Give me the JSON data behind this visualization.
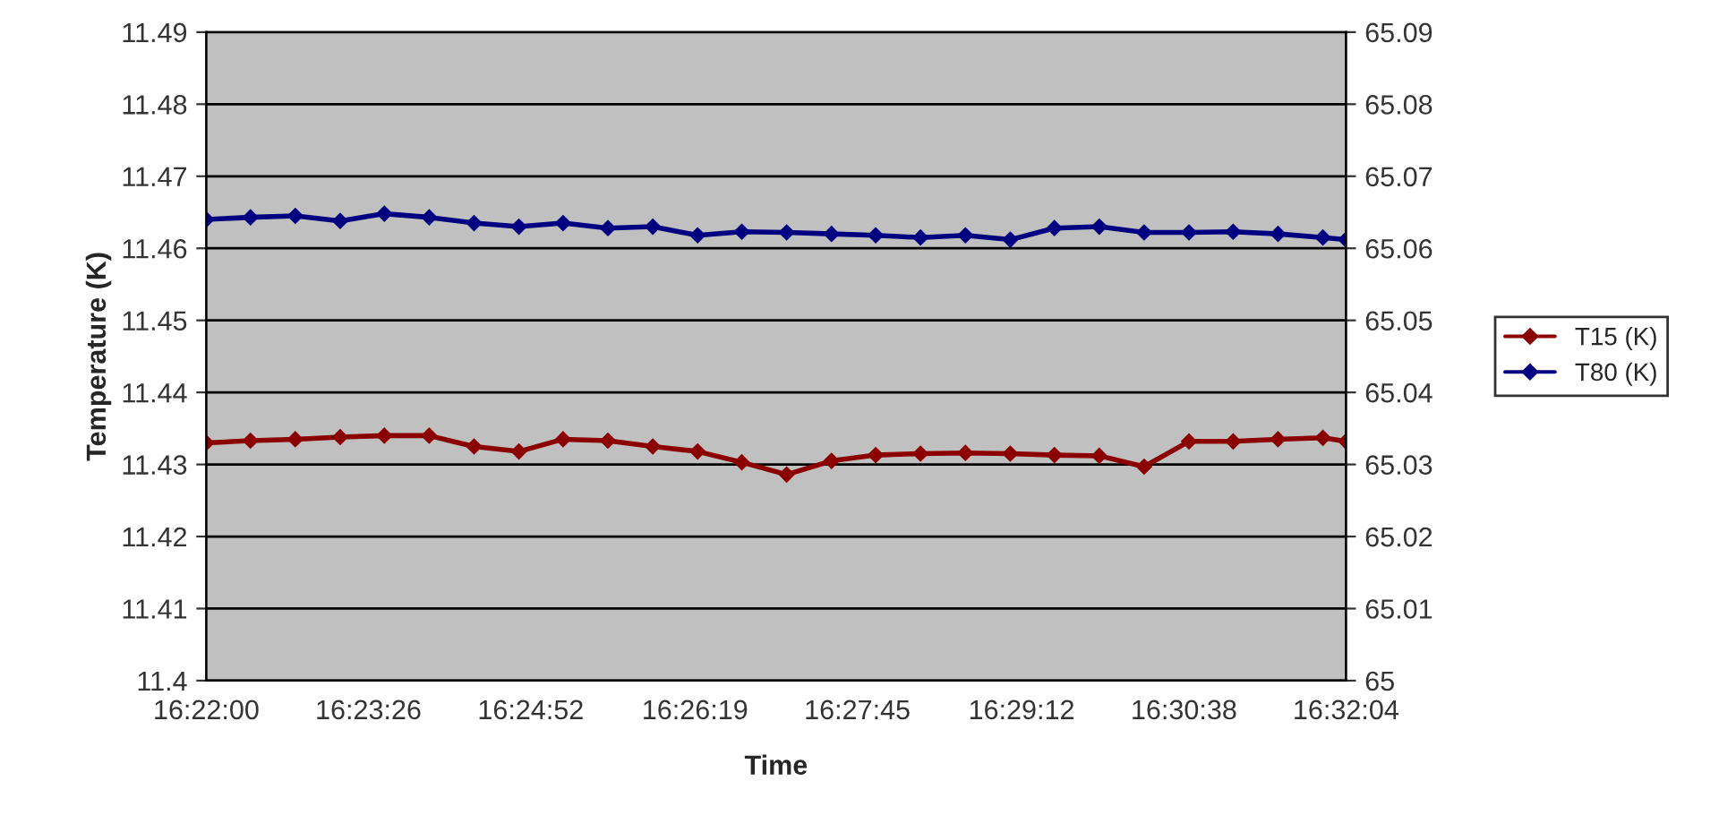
{
  "chart_data": {
    "type": "line",
    "xlabel": "Time",
    "ylabel": "Temperature (K)",
    "x": [
      16.3667,
      16.3732,
      16.3798,
      16.3864,
      16.3929,
      16.3995,
      16.4061,
      16.4127,
      16.4192,
      16.4258,
      16.4324,
      16.439,
      16.4455,
      16.4521,
      16.4587,
      16.4652,
      16.4718,
      16.4784,
      16.485,
      16.4915,
      16.4981,
      16.5047,
      16.5113,
      16.5178,
      16.5244,
      16.531,
      16.5344
    ],
    "series": [
      {
        "name": "T15 (K)",
        "color": "#8b0000",
        "values": [
          11.433,
          11.4333,
          11.4335,
          11.4338,
          11.434,
          11.434,
          11.4325,
          11.4318,
          11.4335,
          11.4333,
          11.4325,
          11.4318,
          11.4303,
          11.4286,
          11.4305,
          11.4313,
          11.4315,
          11.4316,
          11.4315,
          11.4313,
          11.4312,
          11.4297,
          11.4332,
          11.4332,
          11.4335,
          11.4337,
          11.4332
        ]
      },
      {
        "name": "T80 (K)",
        "color": "#000080",
        "axis": "y2",
        "values": [
          65.064,
          65.0643,
          65.0645,
          65.0638,
          65.0648,
          65.0643,
          65.0635,
          65.063,
          65.0635,
          65.0628,
          65.063,
          65.0618,
          65.0623,
          65.0622,
          65.062,
          65.0618,
          65.0615,
          65.0618,
          65.0612,
          65.0628,
          65.063,
          65.0622,
          65.0622,
          65.0623,
          65.062,
          65.0615,
          65.0612
        ]
      }
    ],
    "xlim": [
      16.3667,
      16.5344
    ],
    "xticks": [
      {
        "value": 16.3667,
        "label": "16:22:00"
      },
      {
        "value": 16.390556,
        "label": "16:23:26"
      },
      {
        "value": 16.414444,
        "label": "16:24:52"
      },
      {
        "value": 16.438611,
        "label": "16:26:19"
      },
      {
        "value": 16.4625,
        "label": "16:27:45"
      },
      {
        "value": 16.486667,
        "label": "16:29:12"
      },
      {
        "value": 16.510556,
        "label": "16:30:38"
      },
      {
        "value": 16.5344,
        "label": "16:32:04"
      }
    ],
    "ylim": [
      11.4,
      11.49
    ],
    "yticks": [
      11.4,
      11.41,
      11.42,
      11.43,
      11.44,
      11.45,
      11.46,
      11.47,
      11.48,
      11.49
    ],
    "y2lim": [
      65,
      65.09
    ],
    "y2ticks": [
      65,
      65.01,
      65.02,
      65.03,
      65.04,
      65.05,
      65.06,
      65.07,
      65.08,
      65.09
    ],
    "grid": "y",
    "legend": "right",
    "marker": "diamond",
    "line_style": "solid"
  }
}
